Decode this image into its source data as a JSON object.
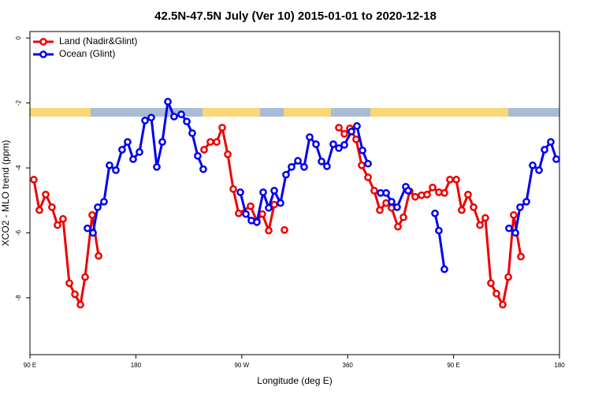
{
  "chart_data": {
    "type": "line",
    "title": "42.5N-47.5N July (Ver 10)   2015-01-01 to 2020-12-18",
    "x_label": "Longitude (deg E)",
    "y_label": "XCO2 - MLO trend (ppm)",
    "xlim": [
      90,
      540
    ],
    "xticks": [
      {
        "value": 90,
        "label": "90 E"
      },
      180,
      {
        "value": 270,
        "label": "90 W"
      },
      360,
      {
        "value": 450,
        "label": "90 E"
      },
      180
    ],
    "ylim": [
      -9.75,
      0.2
    ],
    "yticks": [
      0,
      -2,
      -4,
      -6,
      -8
    ],
    "legend": "topleft",
    "series": [
      {
        "name": "Land (Nadir&Glint)",
        "color": "#ee0000",
        "x": [
          93.3,
          98.0,
          103.4,
          108.7,
          113.4,
          118.1,
          123.5,
          128.2,
          132.9,
          136.9,
          142.9,
          148.3,
          null,
          238.0,
          243.3,
          248.7,
          253.4,
          258.1,
          262.8,
          267.4,
          277.5,
          282.8,
          287.5,
          292.9,
          297.6,
          null,
          306.3,
          null,
          352.5,
          357.2,
          361.9,
          367.2,
          371.9,
          377.3,
          382.6,
          387.3,
          392.7,
          397.3,
          402.7,
          407.4,
          412.7,
          417.4,
          422.8,
          427.5,
          432.2,
          437.5,
          442.2,
          446.9,
          452.3,
          456.9,
          462.3,
          467.0,
          472.4,
          477.0,
          481.7,
          486.4,
          491.8,
          496.5,
          501.1,
          507.2
        ],
        "values": [
          -4.36,
          -5.3,
          -4.82,
          -5.21,
          -5.76,
          -5.57,
          -7.55,
          -7.89,
          -8.21,
          -7.36,
          -5.45,
          -6.71,
          null,
          -3.44,
          -3.2,
          -3.2,
          -2.76,
          -3.58,
          -4.65,
          -5.4,
          -5.18,
          -5.64,
          -5.42,
          -5.93,
          -5.13,
          null,
          -5.91,
          null,
          -2.76,
          -2.95,
          -2.78,
          -3.12,
          -3.92,
          -4.29,
          -4.7,
          -5.3,
          -5.08,
          -5.23,
          -5.81,
          -5.52,
          -4.72,
          -4.89,
          -4.84,
          -4.82,
          -4.6,
          -4.75,
          -4.77,
          -4.36,
          -4.36,
          -5.3,
          -4.82,
          -5.21,
          -5.76,
          -5.54,
          -7.55,
          -7.87,
          -8.21,
          -7.36,
          -5.45,
          -6.73
        ]
      },
      {
        "name": "Ocean (Glint)",
        "color": "#0000ee",
        "x": [
          138.9,
          143.6,
          147.6,
          152.9,
          157.6,
          163.0,
          168.3,
          173.0,
          177.7,
          183.1,
          187.8,
          193.1,
          197.8,
          202.5,
          207.2,
          212.5,
          218.6,
          223.3,
          227.9,
          232.6,
          237.3,
          null,
          268.8,
          273.5,
          278.2,
          282.8,
          288.2,
          292.9,
          297.6,
          302.9,
          307.6,
          312.3,
          317.7,
          323.0,
          327.7,
          333.1,
          337.8,
          342.4,
          347.8,
          352.5,
          357.2,
          363.2,
          367.9,
          372.6,
          377.3,
          null,
          388.0,
          392.7,
          397.3,
          402.0,
          409.4,
          411.4,
          null,
          434.2,
          437.5,
          442.2,
          null,
          497.1,
          502.5,
          506.5,
          511.9,
          517.2,
          522.6,
          527.3,
          532.6,
          537.3
        ],
        "values": [
          -5.86,
          -6.0,
          -5.21,
          -5.04,
          -3.92,
          -4.07,
          -3.44,
          -3.2,
          -3.73,
          -3.51,
          -2.54,
          -2.45,
          -3.97,
          -3.2,
          -1.96,
          -2.42,
          -2.35,
          -2.57,
          -2.93,
          -3.63,
          -4.04,
          null,
          -4.75,
          -5.42,
          -5.62,
          -5.67,
          -4.75,
          -5.23,
          -4.7,
          -5.08,
          -4.21,
          -3.97,
          -3.78,
          -3.97,
          -3.05,
          -3.27,
          -3.8,
          -3.95,
          -3.27,
          -3.39,
          -3.29,
          -2.88,
          -2.71,
          -3.46,
          -3.87,
          null,
          -4.77,
          -4.77,
          -5.04,
          -5.21,
          -4.58,
          -4.7,
          null,
          -5.4,
          -5.93,
          -7.12,
          null,
          -5.86,
          -6.0,
          -5.21,
          -5.04,
          -3.92,
          -4.07,
          -3.44,
          -3.2,
          -3.73
        ]
      }
    ]
  }
}
